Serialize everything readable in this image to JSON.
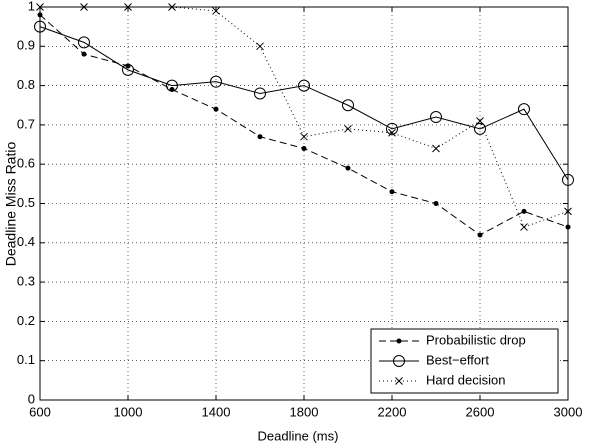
{
  "chart_data": {
    "type": "line",
    "xlabel": "Deadline (ms)",
    "ylabel": "Deadline Miss Ratio",
    "x": [
      600,
      800,
      1000,
      1200,
      1400,
      1600,
      1800,
      2000,
      2200,
      2400,
      2600,
      2800,
      3000
    ],
    "series": [
      {
        "name": "Probabilistic drop",
        "color": "#000000",
        "dash": "dashed",
        "marker": "dot",
        "values": [
          0.98,
          0.88,
          0.85,
          0.79,
          0.74,
          0.67,
          0.64,
          0.59,
          0.53,
          0.5,
          0.42,
          0.48,
          0.44
        ]
      },
      {
        "name": "Best−effort",
        "color": "#000000",
        "dash": "solid",
        "marker": "circle",
        "values": [
          0.95,
          0.91,
          0.84,
          0.8,
          0.81,
          0.78,
          0.8,
          0.75,
          0.69,
          0.72,
          0.69,
          0.74,
          0.56
        ]
      },
      {
        "name": "Hard decision",
        "color": "#000000",
        "dash": "dotted",
        "marker": "x",
        "values": [
          1.0,
          1.0,
          1.0,
          1.0,
          0.99,
          0.9,
          0.67,
          0.69,
          0.68,
          0.64,
          0.71,
          0.44,
          0.48
        ]
      }
    ],
    "xlim": [
      600,
      3000
    ],
    "xticks": [
      600,
      1000,
      1400,
      1800,
      2200,
      2600,
      3000
    ],
    "ylim": [
      0,
      1
    ],
    "yticks": [
      0,
      0.1,
      0.2,
      0.3,
      0.4,
      0.5,
      0.6,
      0.7,
      0.8,
      0.9,
      1
    ],
    "grid": true,
    "legend": "lower right"
  }
}
